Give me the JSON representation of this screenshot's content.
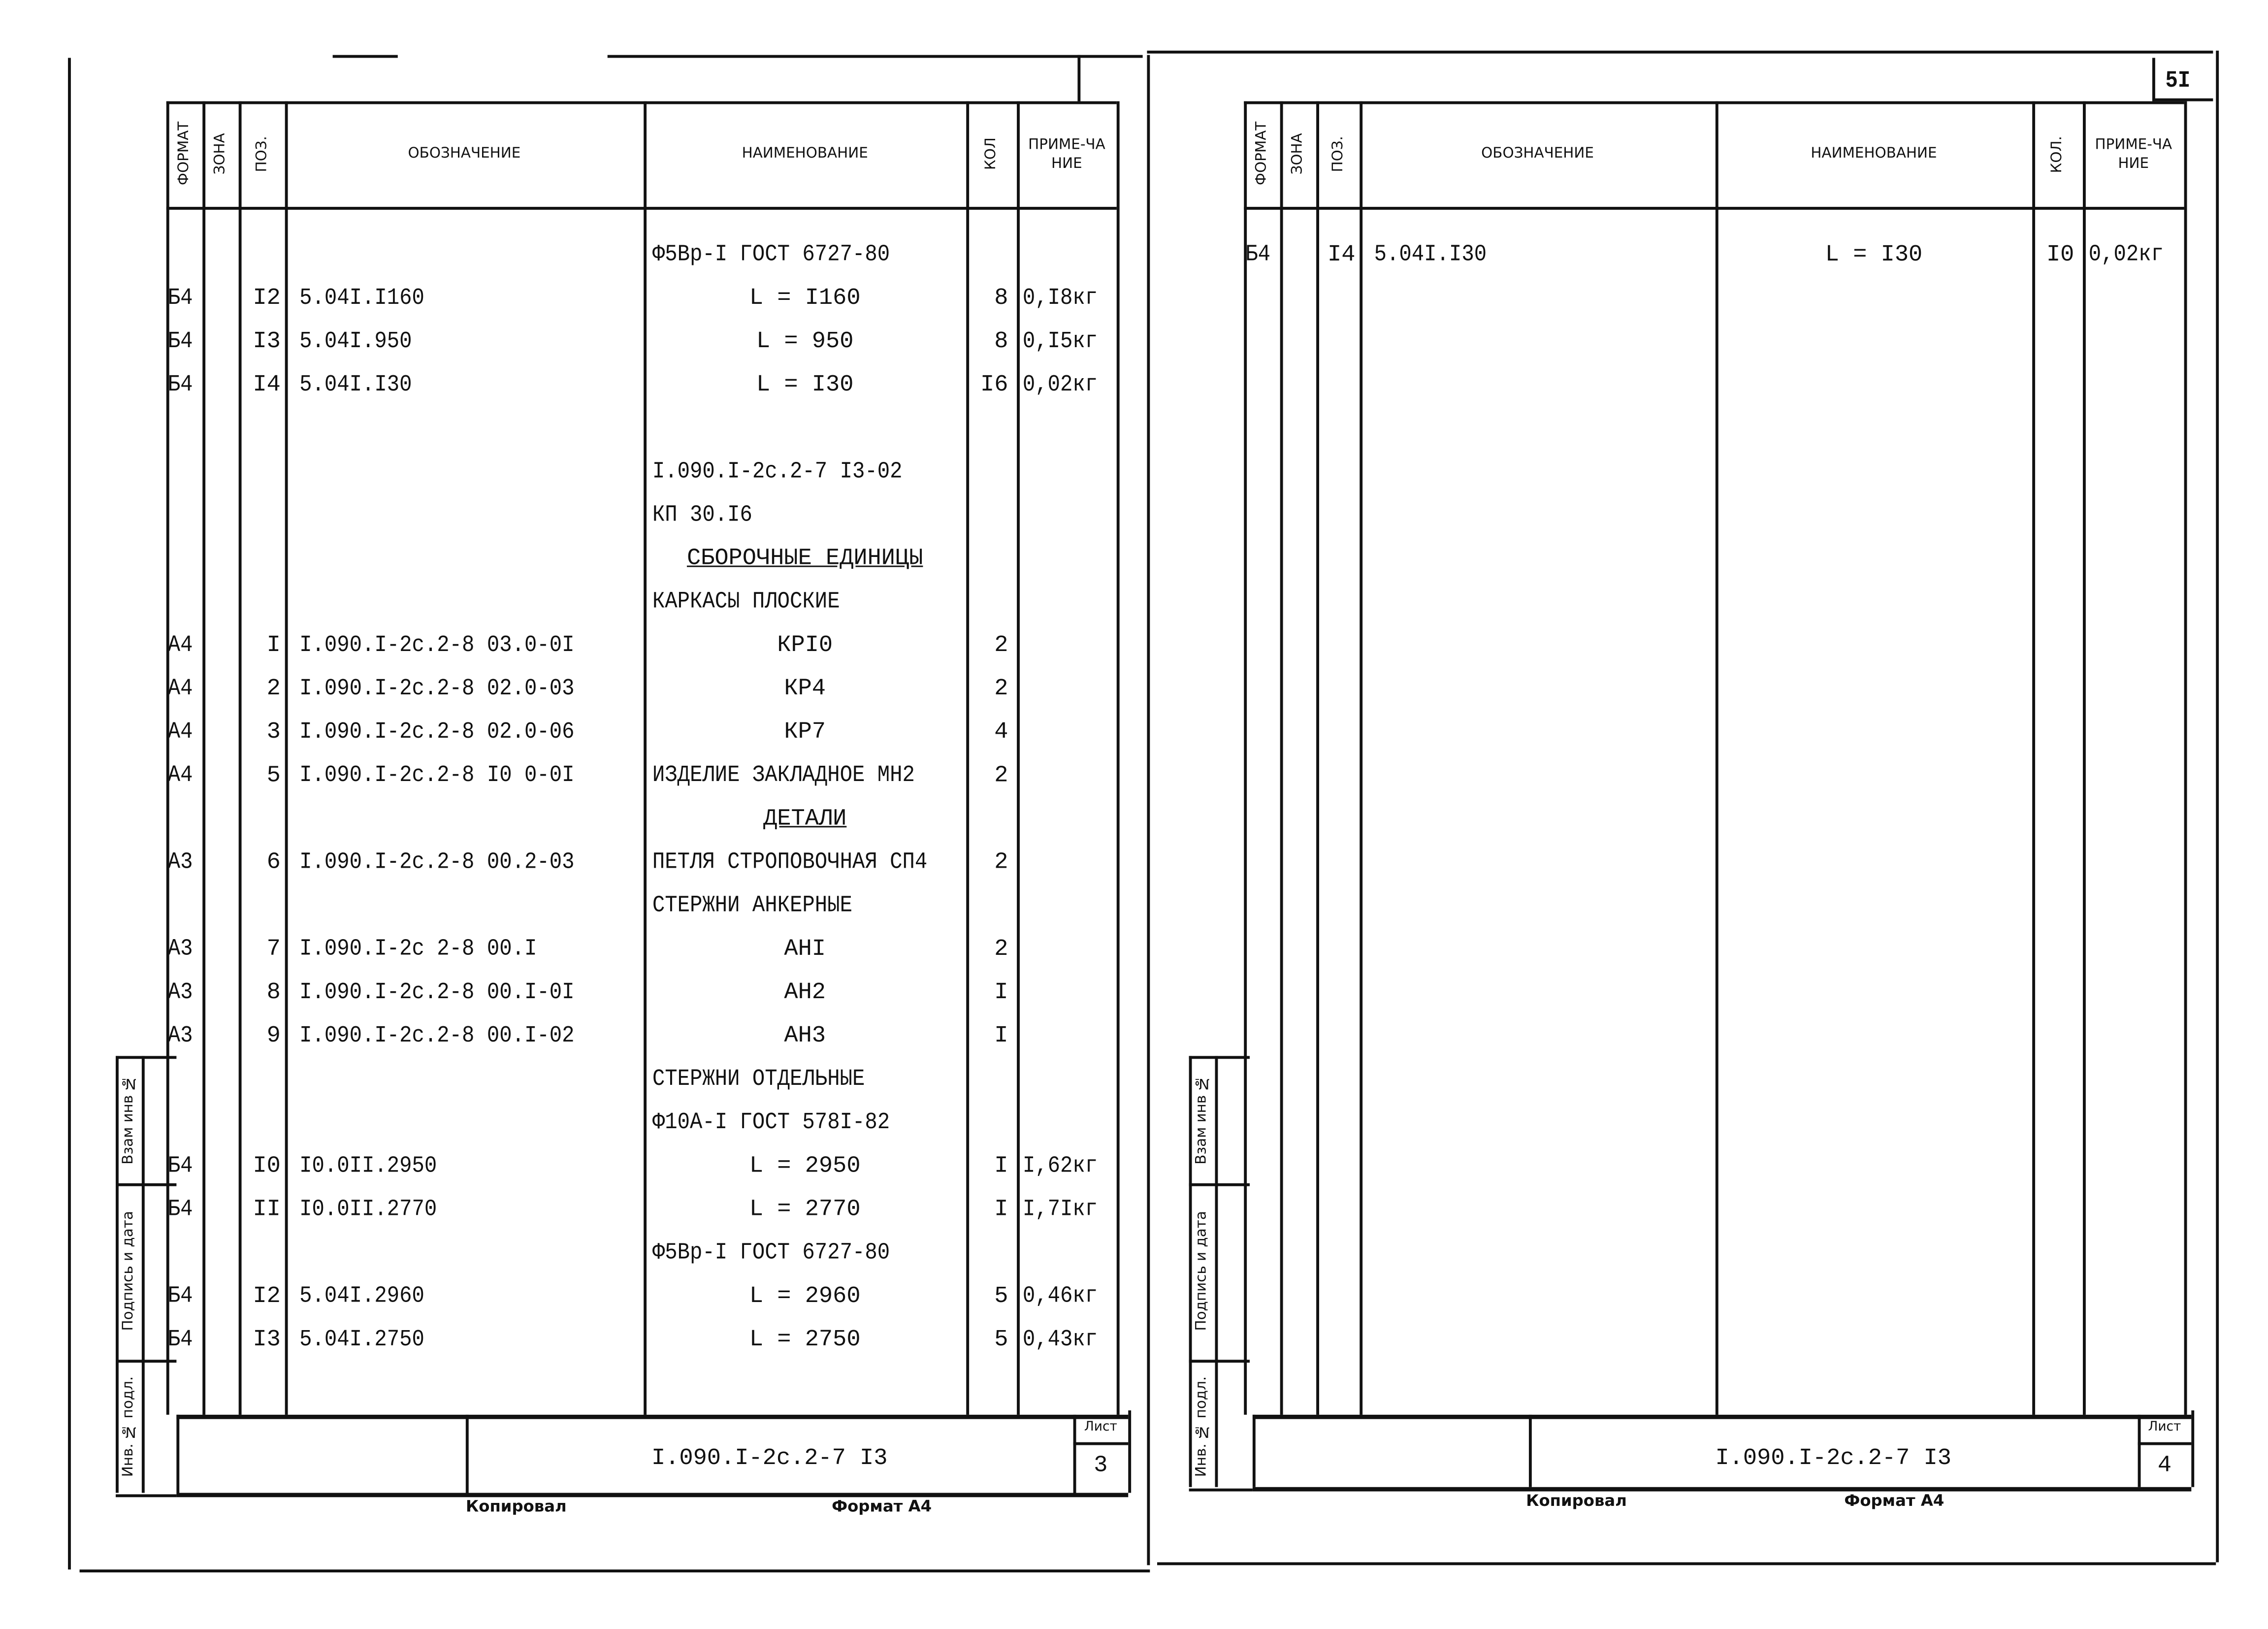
{
  "page_number": "5I",
  "headers": {
    "format": "ФОРМАТ",
    "zone": "ЗОНА",
    "pos": "ПОЗ.",
    "designation": "ОБОЗНАЧЕНИЕ",
    "name": "НАИМЕНОВАНИЕ",
    "qty_left": "КОЛ",
    "qty_right": "КОЛ.",
    "note": "ПРИМЕ-ЧАНИЕ"
  },
  "stamps": {
    "replace_inv": "Взам инв №",
    "sign_date": "Подпись и дата",
    "inv_orig": "Инв. № подл."
  },
  "left_sheet": {
    "rows": [
      {
        "name": "Ф5Вр-I ГОСТ 6727-80"
      },
      {
        "format": "Б4",
        "pos": "I2",
        "designation": "5.04I.I160",
        "name": "L = I160",
        "qty": "8",
        "note": "0,I8кг",
        "center": true
      },
      {
        "format": "Б4",
        "pos": "I3",
        "designation": "5.04I.950",
        "name": "L = 950",
        "qty": "8",
        "note": "0,I5кг",
        "center": true
      },
      {
        "format": "Б4",
        "pos": "I4",
        "designation": "5.04I.I30",
        "name": "L = I30",
        "qty": "I6",
        "note": "0,02кг",
        "center": true
      },
      {},
      {
        "name": "I.090.I-2с.2-7 I3-02"
      },
      {
        "name": "КП 30.I6"
      },
      {
        "name": "СБОРОЧНЫЕ ЕДИНИЦЫ",
        "center": true,
        "underline": true
      },
      {
        "name": "КАРКАСЫ ПЛОСКИЕ"
      },
      {
        "format": "А4",
        "pos": "I",
        "designation": "I.090.I-2с.2-8 03.0-0I",
        "name": "КРI0",
        "qty": "2",
        "center": true
      },
      {
        "format": "А4",
        "pos": "2",
        "designation": "I.090.I-2с.2-8 02.0-03",
        "name": "КР4",
        "qty": "2",
        "center": true
      },
      {
        "format": "А4",
        "pos": "3",
        "designation": "I.090.I-2с.2-8 02.0-06",
        "name": "КР7",
        "qty": "4",
        "center": true
      },
      {
        "format": "А4",
        "pos": "5",
        "designation": "I.090.I-2с.2-8 I0 0-0I",
        "name": "ИЗДЕЛИЕ ЗАКЛАДНОЕ МН2",
        "qty": "2"
      },
      {
        "name": "ДЕТАЛИ",
        "center": true,
        "underline": true
      },
      {
        "format": "А3",
        "pos": "6",
        "designation": "I.090.I-2с.2-8 00.2-03",
        "name": "ПЕТЛЯ СТРОПОВОЧНАЯ СП4",
        "qty": "2"
      },
      {
        "name": "СТЕРЖНИ АНКЕРНЫЕ"
      },
      {
        "format": "А3",
        "pos": "7",
        "designation": "I.090.I-2с 2-8 00.I",
        "name": "АНI",
        "qty": "2",
        "center": true
      },
      {
        "format": "А3",
        "pos": "8",
        "designation": "I.090.I-2с.2-8 00.I-0I",
        "name": "АН2",
        "qty": "I",
        "center": true
      },
      {
        "format": "А3",
        "pos": "9",
        "designation": "I.090.I-2с.2-8 00.I-02",
        "name": "АН3",
        "qty": "I",
        "center": true
      },
      {
        "name": "СТЕРЖНИ ОТДЕЛЬНЫЕ"
      },
      {
        "name": "Ф10А-I ГОСТ 578I-82"
      },
      {
        "format": "Б4",
        "pos": "I0",
        "designation": "I0.0II.2950",
        "name": "L = 2950",
        "qty": "I",
        "note": "I,62кг",
        "center": true
      },
      {
        "format": "Б4",
        "pos": "II",
        "designation": "I0.0II.2770",
        "name": "L = 2770",
        "qty": "I",
        "note": "I,7Iкг",
        "center": true
      },
      {
        "name": "Ф5Вр-I ГОСТ 6727-80"
      },
      {
        "format": "Б4",
        "pos": "I2",
        "designation": "5.04I.2960",
        "name": "L = 2960",
        "qty": "5",
        "note": "0,46кг",
        "center": true
      },
      {
        "format": "Б4",
        "pos": "I3",
        "designation": "5.04I.2750",
        "name": "L = 2750",
        "qty": "5",
        "note": "0,43кг",
        "center": true
      }
    ],
    "title_code": "I.090.I-2с.2-7 I3",
    "sheet_label": "Лист",
    "sheet_number": "3",
    "copied_label": "Копировал",
    "format_label": "Формат А4"
  },
  "right_sheet": {
    "rows": [
      {
        "format": "Б4",
        "pos": "I4",
        "designation": "5.04I.I30",
        "name": "L = I30",
        "qty": "I0",
        "note": "0,02кг",
        "center": true
      }
    ],
    "title_code": "I.090.I-2с.2-7 I3",
    "sheet_label": "Лист",
    "sheet_number": "4",
    "copied_label": "Копировал",
    "format_label": "Формат А4"
  }
}
